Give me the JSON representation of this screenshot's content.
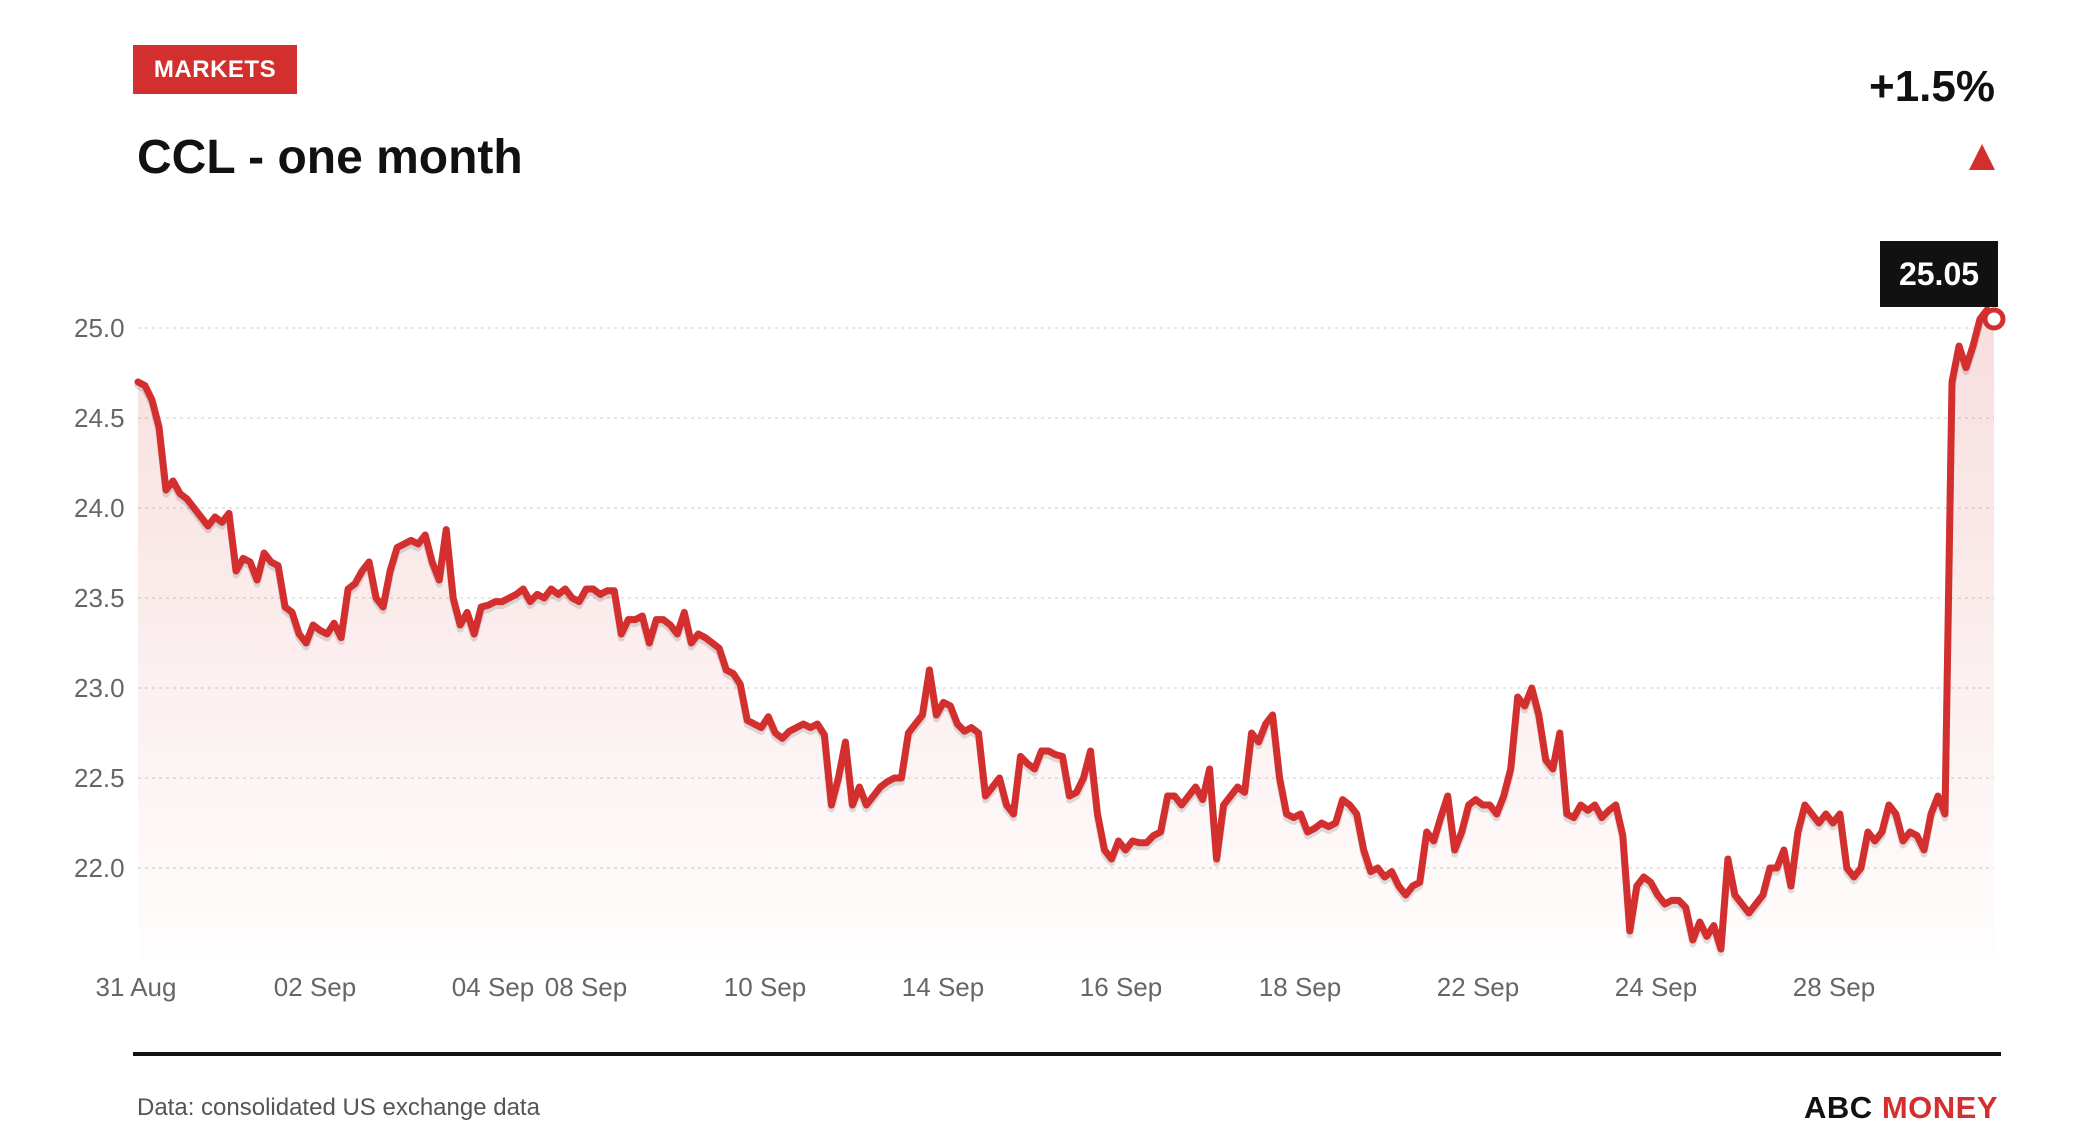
{
  "header": {
    "badge_label": "MARKETS",
    "title": "CCL - one month",
    "change": "+1.5%",
    "direction": "up"
  },
  "footer": {
    "source": "Data: consolidated US exchange data",
    "brand_part1": "ABC",
    "brand_part2": "MONEY"
  },
  "colors": {
    "accent": "#d32f2f",
    "text": "#111111",
    "muted": "#666666",
    "grid": "#dddddd",
    "tooltip_bg": "#111111"
  },
  "chart_data": {
    "type": "area",
    "title": "CCL - one month",
    "xlabel": "",
    "ylabel": "",
    "ylim": [
      21.6,
      25.2
    ],
    "y_ticks": [
      "22.0",
      "22.5",
      "23.0",
      "23.5",
      "24.0",
      "24.5",
      "25.0"
    ],
    "x_ticks": [
      "31 Aug",
      "02 Sep",
      "04 Sep",
      "08 Sep",
      "10 Sep",
      "14 Sep",
      "16 Sep",
      "18 Sep",
      "22 Sep",
      "24 Sep",
      "28 Sep"
    ],
    "grid": true,
    "last_value_label": "25.05",
    "series": [
      {
        "values": [
          24.7,
          24.68,
          24.6,
          24.45,
          24.1,
          24.15,
          24.08,
          24.05,
          24.0,
          23.95,
          23.9,
          23.95,
          23.92,
          23.97,
          23.65,
          23.72,
          23.7,
          23.6,
          23.75,
          23.7,
          23.68,
          23.45,
          23.42,
          23.3,
          23.25,
          23.35,
          23.32,
          23.3,
          23.36,
          23.28,
          23.55,
          23.58,
          23.65,
          23.7,
          23.5,
          23.45,
          23.65,
          23.78,
          23.8,
          23.82,
          23.8,
          23.85,
          23.7,
          23.6,
          23.88,
          23.5,
          23.35,
          23.42,
          23.3,
          23.45,
          23.46,
          23.48,
          23.48,
          23.5,
          23.52,
          23.55,
          23.48,
          23.52,
          23.5,
          23.55,
          23.52,
          23.55,
          23.5,
          23.48,
          23.55,
          23.55,
          23.52,
          23.54,
          23.54,
          23.3,
          23.38,
          23.38,
          23.4,
          23.25,
          23.38,
          23.38,
          23.35,
          23.3,
          23.42,
          23.25,
          23.3,
          23.28,
          23.25,
          23.22,
          23.1,
          23.08,
          23.02,
          22.82,
          22.8,
          22.78,
          22.84,
          22.75,
          22.72,
          22.76,
          22.78,
          22.8,
          22.78,
          22.8,
          22.74,
          22.35,
          22.5,
          22.7,
          22.35,
          22.45,
          22.35,
          22.4,
          22.45,
          22.48,
          22.5,
          22.5,
          22.75,
          22.8,
          22.85,
          23.1,
          22.85,
          22.92,
          22.9,
          22.8,
          22.76,
          22.78,
          22.75,
          22.4,
          22.45,
          22.5,
          22.35,
          22.3,
          22.62,
          22.58,
          22.55,
          22.65,
          22.65,
          22.63,
          22.62,
          22.4,
          22.42,
          22.5,
          22.65,
          22.3,
          22.1,
          22.05,
          22.15,
          22.1,
          22.15,
          22.14,
          22.14,
          22.18,
          22.2,
          22.4,
          22.4,
          22.35,
          22.4,
          22.45,
          22.38,
          22.55,
          22.05,
          22.35,
          22.4,
          22.45,
          22.42,
          22.75,
          22.7,
          22.8,
          22.85,
          22.5,
          22.3,
          22.28,
          22.3,
          22.2,
          22.22,
          22.25,
          22.23,
          22.25,
          22.38,
          22.35,
          22.3,
          22.1,
          21.98,
          22.0,
          21.95,
          21.98,
          21.9,
          21.85,
          21.9,
          21.92,
          22.2,
          22.15,
          22.28,
          22.4,
          22.1,
          22.2,
          22.35,
          22.38,
          22.35,
          22.35,
          22.3,
          22.4,
          22.55,
          22.95,
          22.9,
          23.0,
          22.85,
          22.6,
          22.55,
          22.75,
          22.3,
          22.28,
          22.35,
          22.32,
          22.35,
          22.28,
          22.32,
          22.35,
          22.18,
          21.65,
          21.9,
          21.95,
          21.92,
          21.85,
          21.8,
          21.82,
          21.82,
          21.78,
          21.6,
          21.7,
          21.62,
          21.68,
          21.55,
          22.05,
          21.85,
          21.8,
          21.75,
          21.8,
          21.85,
          22.0,
          22.0,
          22.1,
          21.9,
          22.2,
          22.35,
          22.3,
          22.25,
          22.3,
          22.25,
          22.3,
          22.0,
          21.95,
          22.0,
          22.2,
          22.15,
          22.2,
          22.35,
          22.3,
          22.15,
          22.2,
          22.18,
          22.1,
          22.3,
          22.4,
          22.3,
          24.7,
          24.9,
          24.78,
          24.9,
          25.05,
          25.1,
          25.05
        ]
      }
    ]
  }
}
